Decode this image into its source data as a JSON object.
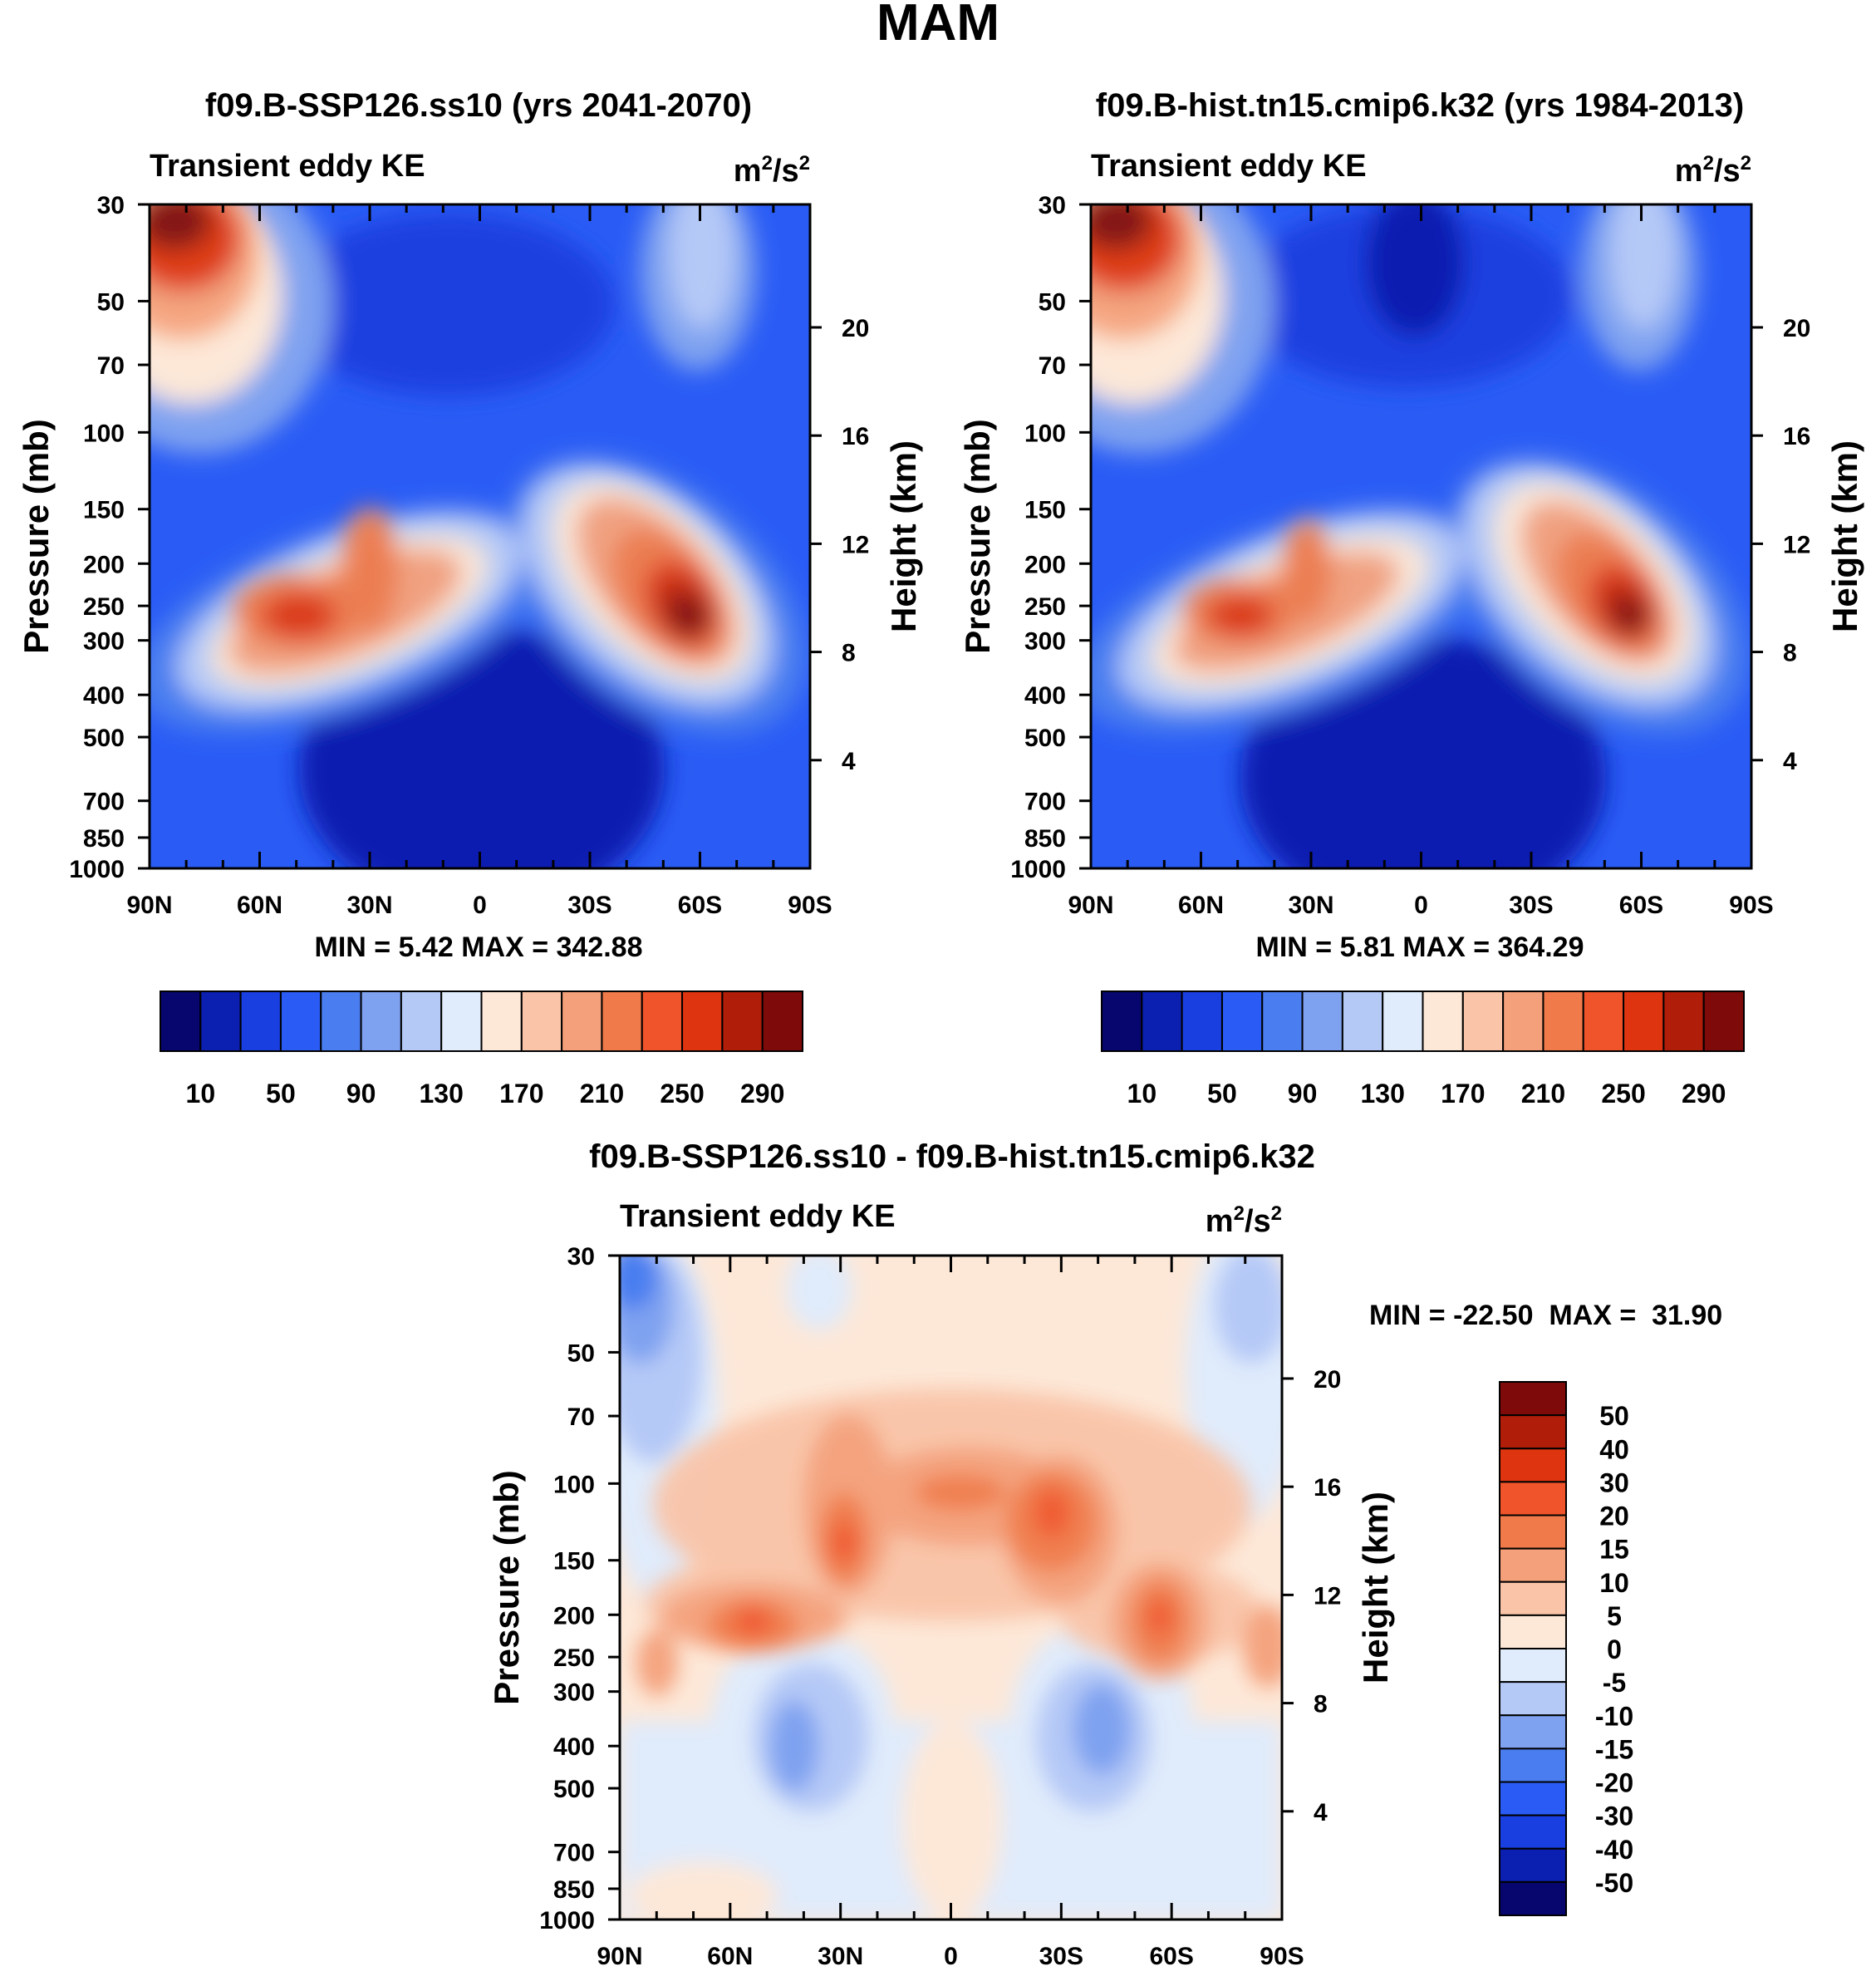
{
  "figure_title": "MAM",
  "chart_data": [
    {
      "type": "heatmap",
      "panel": "top-left",
      "title": "f09.B-SSP126.ss10 (yrs 2041-2070)",
      "left_label": "Transient eddy KE",
      "right_label_base": "m",
      "right_label_exp1": "2",
      "right_label_mid": "/s",
      "right_label_exp2": "2",
      "ylabel": "Pressure (mb)",
      "y2label": "Height (km)",
      "x_ticks": [
        "90N",
        "60N",
        "30N",
        "0",
        "30S",
        "60S",
        "90S"
      ],
      "y_ticks": [
        30,
        50,
        70,
        100,
        150,
        200,
        250,
        300,
        400,
        500,
        700,
        850,
        1000
      ],
      "y2_ticks": [
        20,
        16,
        12,
        8,
        4
      ],
      "min_max_text": "MIN =   5.42  MAX = 342.88",
      "colorbar": {
        "orientation": "horizontal",
        "colors": [
          "#06066e",
          "#0b1fb0",
          "#1a3fe0",
          "#2a5cf5",
          "#4a7ef0",
          "#7fa2f0",
          "#b5c9f7",
          "#e0ebfb",
          "#fde8d8",
          "#f9c4a8",
          "#f4a07a",
          "#f07a4a",
          "#f0542a",
          "#de3410",
          "#b01e0a",
          "#7e0a0a"
        ],
        "labels": [
          "10",
          "50",
          "90",
          "130",
          "170",
          "210",
          "250",
          "290"
        ]
      },
      "features": [
        {
          "lat": 80,
          "p": 30,
          "value": 342
        },
        {
          "lat": 45,
          "p": 270,
          "value": 255
        },
        {
          "lat": 30,
          "p": 200,
          "value": 245
        },
        {
          "lat": -55,
          "p": 280,
          "value": 330
        }
      ]
    },
    {
      "type": "heatmap",
      "panel": "top-right",
      "title": "f09.B-hist.tn15.cmip6.k32 (yrs 1984-2013)",
      "left_label": "Transient eddy KE",
      "right_label_base": "m",
      "right_label_exp1": "2",
      "right_label_mid": "/s",
      "right_label_exp2": "2",
      "ylabel": "Pressure (mb)",
      "y2label": "Height (km)",
      "x_ticks": [
        "90N",
        "60N",
        "30N",
        "0",
        "30S",
        "60S",
        "90S"
      ],
      "y_ticks": [
        30,
        50,
        70,
        100,
        150,
        200,
        250,
        300,
        400,
        500,
        700,
        850,
        1000
      ],
      "y2_ticks": [
        20,
        16,
        12,
        8,
        4
      ],
      "min_max_text": "MIN =   5.81  MAX = 364.29",
      "colorbar": {
        "orientation": "horizontal",
        "colors": [
          "#06066e",
          "#0b1fb0",
          "#1a3fe0",
          "#2a5cf5",
          "#4a7ef0",
          "#7fa2f0",
          "#b5c9f7",
          "#e0ebfb",
          "#fde8d8",
          "#f9c4a8",
          "#f4a07a",
          "#f07a4a",
          "#f0542a",
          "#de3410",
          "#b01e0a",
          "#7e0a0a"
        ],
        "labels": [
          "10",
          "50",
          "90",
          "130",
          "170",
          "210",
          "250",
          "290"
        ]
      },
      "features": [
        {
          "lat": 80,
          "p": 30,
          "value": 364
        },
        {
          "lat": 45,
          "p": 270,
          "value": 240
        },
        {
          "lat": 30,
          "p": 200,
          "value": 235
        },
        {
          "lat": -55,
          "p": 280,
          "value": 320
        }
      ]
    },
    {
      "type": "heatmap",
      "panel": "bottom",
      "title": "f09.B-SSP126.ss10 - f09.B-hist.tn15.cmip6.k32",
      "left_label": "Transient eddy KE",
      "right_label_base": "m",
      "right_label_exp1": "2",
      "right_label_mid": "/s",
      "right_label_exp2": "2",
      "ylabel": "Pressure (mb)",
      "y2label": "Height (km)",
      "x_ticks": [
        "90N",
        "60N",
        "30N",
        "0",
        "30S",
        "60S",
        "90S"
      ],
      "y_ticks": [
        30,
        50,
        70,
        100,
        150,
        200,
        250,
        300,
        400,
        500,
        700,
        850,
        1000
      ],
      "y2_ticks": [
        20,
        16,
        12,
        8,
        4
      ],
      "min_max_text": "MIN = -22.50  MAX =  31.90",
      "colorbar": {
        "orientation": "vertical",
        "colors": [
          "#7e0a0a",
          "#b01e0a",
          "#de3410",
          "#f0542a",
          "#f07a4a",
          "#f4a07a",
          "#f9c4a8",
          "#fde8d8",
          "#e0ebfb",
          "#b5c9f7",
          "#7fa2f0",
          "#4a7ef0",
          "#2a5cf5",
          "#1a3fe0",
          "#0b1fb0",
          "#06066e"
        ],
        "labels": [
          "50",
          "40",
          "30",
          "20",
          "15",
          "10",
          "5",
          "0",
          "-5",
          "-10",
          "-15",
          "-20",
          "-30",
          "-40",
          "-50"
        ]
      },
      "features": [
        {
          "lat": 60,
          "p": 210,
          "value": 22
        },
        {
          "lat": 30,
          "p": 150,
          "value": 28
        },
        {
          "lat": -20,
          "p": 140,
          "value": 25
        },
        {
          "lat": -60,
          "p": 210,
          "value": 26
        },
        {
          "lat": 85,
          "p": 40,
          "value": -22
        },
        {
          "lat": 45,
          "p": 400,
          "value": -12
        },
        {
          "lat": -35,
          "p": 380,
          "value": -12
        }
      ]
    }
  ]
}
